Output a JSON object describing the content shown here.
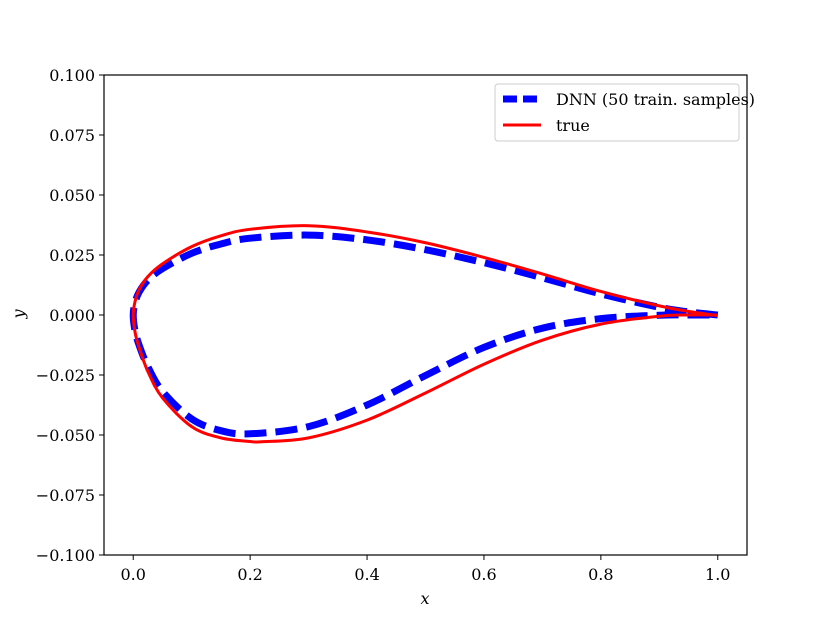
{
  "chart_data": {
    "type": "line",
    "title": "",
    "xlabel": "x",
    "ylabel": "y",
    "xlim": [
      -0.05,
      1.05
    ],
    "ylim": [
      -0.1,
      0.1
    ],
    "xticks": [
      0.0,
      0.2,
      0.4,
      0.6,
      0.8,
      1.0
    ],
    "xtick_labels": [
      "0.0",
      "0.2",
      "0.4",
      "0.6",
      "0.8",
      "1.0"
    ],
    "yticks": [
      -0.1,
      -0.075,
      -0.05,
      -0.025,
      0.0,
      0.025,
      0.05,
      0.075,
      0.1
    ],
    "ytick_labels": [
      "−0.100",
      "−0.075",
      "−0.050",
      "−0.025",
      "0.000",
      "0.025",
      "0.050",
      "0.075",
      "0.100"
    ],
    "grid": false,
    "legend_position": "top-right",
    "series": [
      {
        "name": "DNN (50 train. samples)",
        "style": "dashed",
        "color": "#0000ff",
        "x": [
          1.0,
          0.95,
          0.9,
          0.8,
          0.7,
          0.6,
          0.5,
          0.4,
          0.3,
          0.2,
          0.15,
          0.1,
          0.05,
          0.025,
          0.01,
          0.003,
          0.0,
          0.003,
          0.01,
          0.025,
          0.05,
          0.1,
          0.15,
          0.2,
          0.3,
          0.4,
          0.5,
          0.6,
          0.7,
          0.8,
          0.9,
          0.95,
          1.0
        ],
        "y": [
          0.0,
          0.0013,
          0.0032,
          0.0088,
          0.0155,
          0.0218,
          0.0272,
          0.0313,
          0.0333,
          0.032,
          0.0296,
          0.0257,
          0.0193,
          0.0145,
          0.0095,
          0.005,
          0.0,
          -0.0065,
          -0.0125,
          -0.0215,
          -0.0318,
          -0.0433,
          -0.0482,
          -0.0495,
          -0.0465,
          -0.0375,
          -0.0252,
          -0.0135,
          -0.0055,
          -0.0015,
          -0.0001,
          0.0,
          0.0
        ]
      },
      {
        "name": "true",
        "style": "solid",
        "color": "#ff0000",
        "x": [
          1.0,
          0.95,
          0.9,
          0.8,
          0.7,
          0.6,
          0.5,
          0.4,
          0.3,
          0.2,
          0.15,
          0.1,
          0.05,
          0.025,
          0.01,
          0.003,
          0.0,
          0.003,
          0.01,
          0.025,
          0.05,
          0.1,
          0.15,
          0.2,
          0.22,
          0.3,
          0.4,
          0.5,
          0.6,
          0.7,
          0.8,
          0.9,
          0.95,
          1.0
        ],
        "y": [
          -0.0003,
          0.0015,
          0.0038,
          0.0098,
          0.0171,
          0.024,
          0.0301,
          0.0346,
          0.0372,
          0.0357,
          0.033,
          0.0285,
          0.0213,
          0.016,
          0.0105,
          0.0055,
          0.0,
          -0.007,
          -0.0135,
          -0.0235,
          -0.0345,
          -0.0465,
          -0.0512,
          -0.0527,
          -0.0528,
          -0.0512,
          -0.0438,
          -0.0325,
          -0.0205,
          -0.0105,
          -0.0038,
          -0.0005,
          0.0,
          0.0
        ]
      }
    ]
  }
}
